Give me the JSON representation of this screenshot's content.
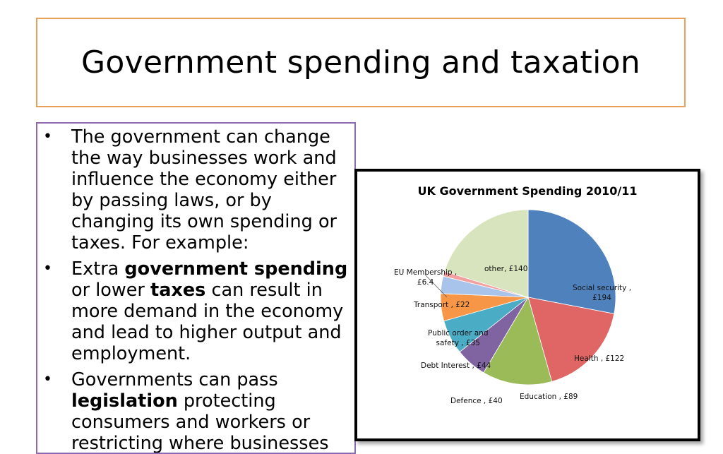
{
  "slide": {
    "title": "Government spending and taxation",
    "bullets": [
      {
        "parts": [
          {
            "text": "The government can change the way businesses work and influence the economy either by passing laws, or by changing its own spending or taxes. For example:",
            "bold": false
          }
        ]
      },
      {
        "parts": [
          {
            "text": "Extra ",
            "bold": false
          },
          {
            "text": "government spending",
            "bold": true
          },
          {
            "text": " or lower ",
            "bold": false
          },
          {
            "text": "taxes",
            "bold": true
          },
          {
            "text": " can result in more demand in the economy and lead to higher output and employment.",
            "bold": false
          }
        ]
      },
      {
        "parts": [
          {
            "text": "Governments can pass ",
            "bold": false
          },
          {
            "text": "legislation",
            "bold": true
          },
          {
            "text": " protecting consumers and workers or restricting where businesses",
            "bold": false
          }
        ]
      }
    ]
  },
  "chart_data": {
    "type": "pie",
    "title": "UK Government Spending 2010/11",
    "unit": "£",
    "slices": [
      {
        "name": "Social security",
        "value": 194,
        "label": "Social security ,\n£194",
        "color": "#4f81bd"
      },
      {
        "name": "Health",
        "value": 122,
        "label": "Health , £122",
        "color": "#e06666"
      },
      {
        "name": "Education",
        "value": 89,
        "label": "Education , £89",
        "color": "#9bbb59"
      },
      {
        "name": "Defence",
        "value": 40,
        "label": "Defence , £40",
        "color": "#8064a2"
      },
      {
        "name": "Debt Interest",
        "value": 44,
        "label": "Debt Interest , £44",
        "color": "#4bacc6"
      },
      {
        "name": "Public order and safety",
        "value": 35,
        "label": "Public order and\nsafety , £35",
        "color": "#f79646"
      },
      {
        "name": "Transport",
        "value": 22,
        "label": "Transport , £22",
        "color": "#a9c4eb"
      },
      {
        "name": "EU Membership",
        "value": 6.4,
        "label": "EU Membership ,\n£6.4",
        "color": "#f2a0a0"
      },
      {
        "name": "other",
        "value": 140,
        "label": "other, £140",
        "color": "#d7e4bd"
      }
    ]
  }
}
